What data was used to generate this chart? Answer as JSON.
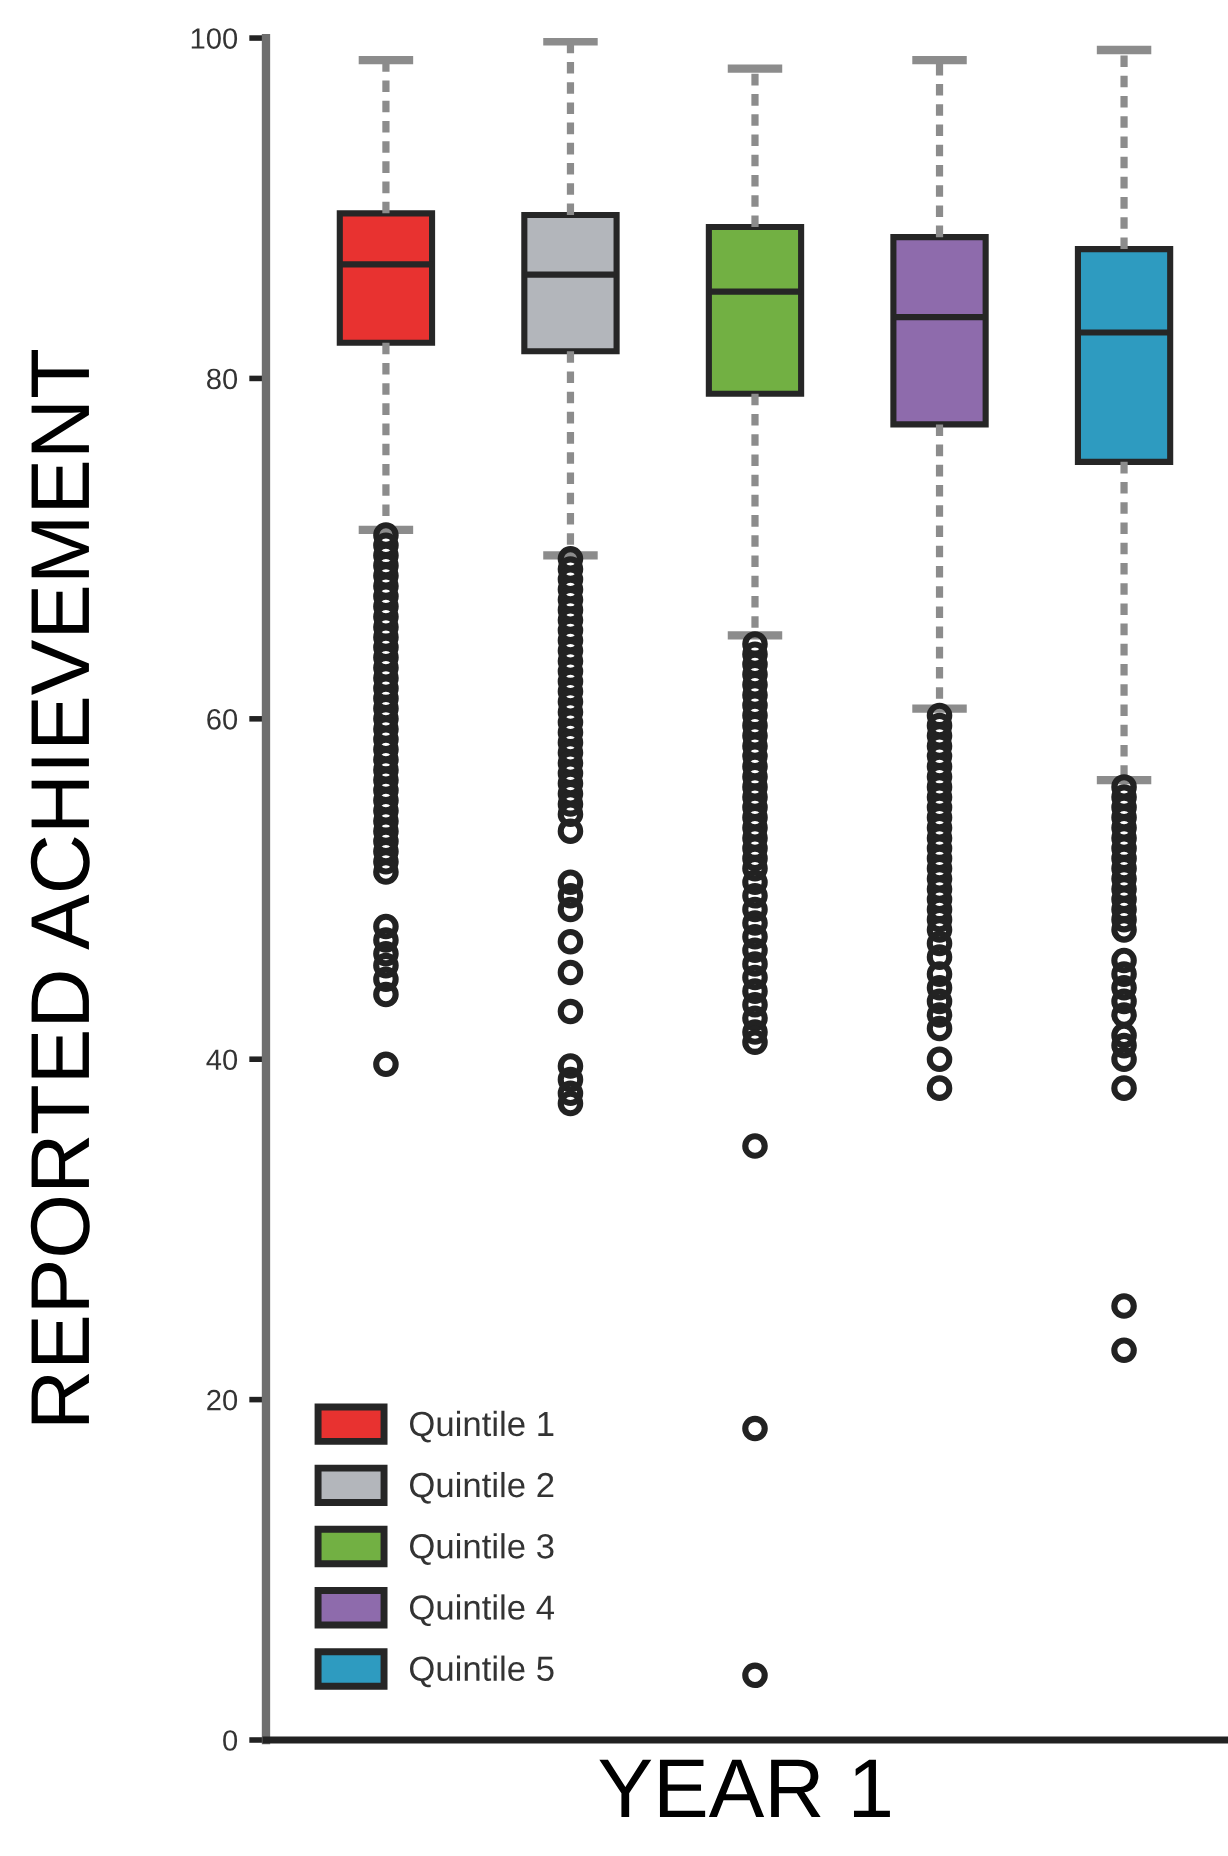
{
  "chart_data": {
    "type": "box",
    "ylabel": "REPORTED ACHIEVEMENT",
    "xlabel": "YEAR 1",
    "categories": [
      null,
      null,
      null,
      null,
      null
    ],
    "ylim": [
      0,
      100
    ],
    "yticks": [
      0,
      20,
      40,
      60,
      80,
      100
    ],
    "legend": "bottom left",
    "marker": "circle",
    "line_style": "dashed",
    "series": [
      {
        "name": "Quintile 1",
        "color": "#e83230",
        "boxes": [
          {
            "low": 71.1,
            "q1": 82.1,
            "median": 86.7,
            "q3": 89.7,
            "high": 98.7,
            "outliers": [
              70.8,
              70.2,
              69.6,
              69.0,
              68.4,
              67.8,
              67.2,
              66.6,
              66.0,
              65.4,
              64.8,
              64.2,
              63.6,
              63.0,
              62.4,
              61.8,
              61.2,
              60.6,
              60.0,
              59.4,
              58.8,
              58.2,
              57.6,
              57.0,
              56.4,
              55.8,
              55.2,
              54.6,
              54.0,
              53.4,
              52.8,
              52.2,
              51.6,
              51.0,
              47.8,
              47.0,
              46.2,
              45.5,
              44.7,
              43.8,
              39.7
            ]
          },
          null,
          null,
          null,
          null
        ]
      },
      {
        "name": "Quintile 2",
        "color": "#b3b6bb",
        "boxes": [
          null,
          {
            "low": 69.6,
            "q1": 81.6,
            "median": 86.1,
            "q3": 89.6,
            "high": 99.8,
            "outliers": [
              69.4,
              68.8,
              68.2,
              67.6,
              67.0,
              66.4,
              65.8,
              65.2,
              64.6,
              64.0,
              63.4,
              62.8,
              62.2,
              61.6,
              61.0,
              60.4,
              59.8,
              59.2,
              58.6,
              58.0,
              57.4,
              56.8,
              56.2,
              55.6,
              55.0,
              54.4,
              53.4,
              50.4,
              49.6,
              48.8,
              46.9,
              45.1,
              42.8,
              39.6,
              38.8,
              38.0,
              37.4
            ]
          },
          null,
          null,
          null
        ]
      },
      {
        "name": "Quintile 3",
        "color": "#72b043",
        "boxes": [
          null,
          null,
          {
            "low": 64.9,
            "q1": 79.1,
            "median": 85.1,
            "q3": 88.9,
            "high": 98.2,
            "outliers": [
              64.4,
              63.8,
              63.2,
              62.6,
              62.0,
              61.4,
              60.8,
              60.2,
              59.6,
              59.0,
              58.4,
              57.8,
              57.2,
              56.6,
              56.0,
              55.4,
              54.8,
              54.2,
              53.6,
              53.0,
              52.4,
              51.8,
              51.2,
              50.4,
              49.6,
              48.8,
              48.0,
              47.2,
              46.4,
              45.6,
              44.8,
              44.0,
              43.2,
              42.4,
              41.6,
              41.0,
              34.9,
              18.3,
              3.8
            ]
          },
          null,
          null
        ]
      },
      {
        "name": "Quintile 4",
        "color": "#8e6bac",
        "boxes": [
          null,
          null,
          null,
          {
            "low": 60.6,
            "q1": 77.3,
            "median": 83.6,
            "q3": 88.3,
            "high": 98.7,
            "outliers": [
              60.2,
              59.6,
              59.0,
              58.4,
              57.8,
              57.2,
              56.6,
              56.0,
              55.4,
              54.8,
              54.2,
              53.6,
              53.0,
              52.4,
              51.8,
              51.2,
              50.6,
              50.0,
              49.4,
              48.8,
              48.2,
              47.6,
              46.8,
              46.0,
              45.0,
              44.2,
              43.4,
              42.6,
              41.8,
              40.0,
              38.3
            ]
          },
          null
        ]
      },
      {
        "name": "Quintile 5",
        "color": "#2e9bc0",
        "boxes": [
          null,
          null,
          null,
          null,
          {
            "low": 56.4,
            "q1": 75.1,
            "median": 82.7,
            "q3": 87.6,
            "high": 99.3,
            "outliers": [
              56.0,
              55.4,
              54.8,
              54.2,
              53.6,
              53.0,
              52.4,
              51.8,
              51.2,
              50.6,
              50.0,
              49.4,
              48.8,
              48.2,
              47.6,
              45.8,
              45.0,
              44.2,
              43.4,
              42.6,
              41.4,
              40.8,
              40.0,
              38.3,
              25.5,
              22.9
            ]
          }
        ]
      }
    ]
  }
}
